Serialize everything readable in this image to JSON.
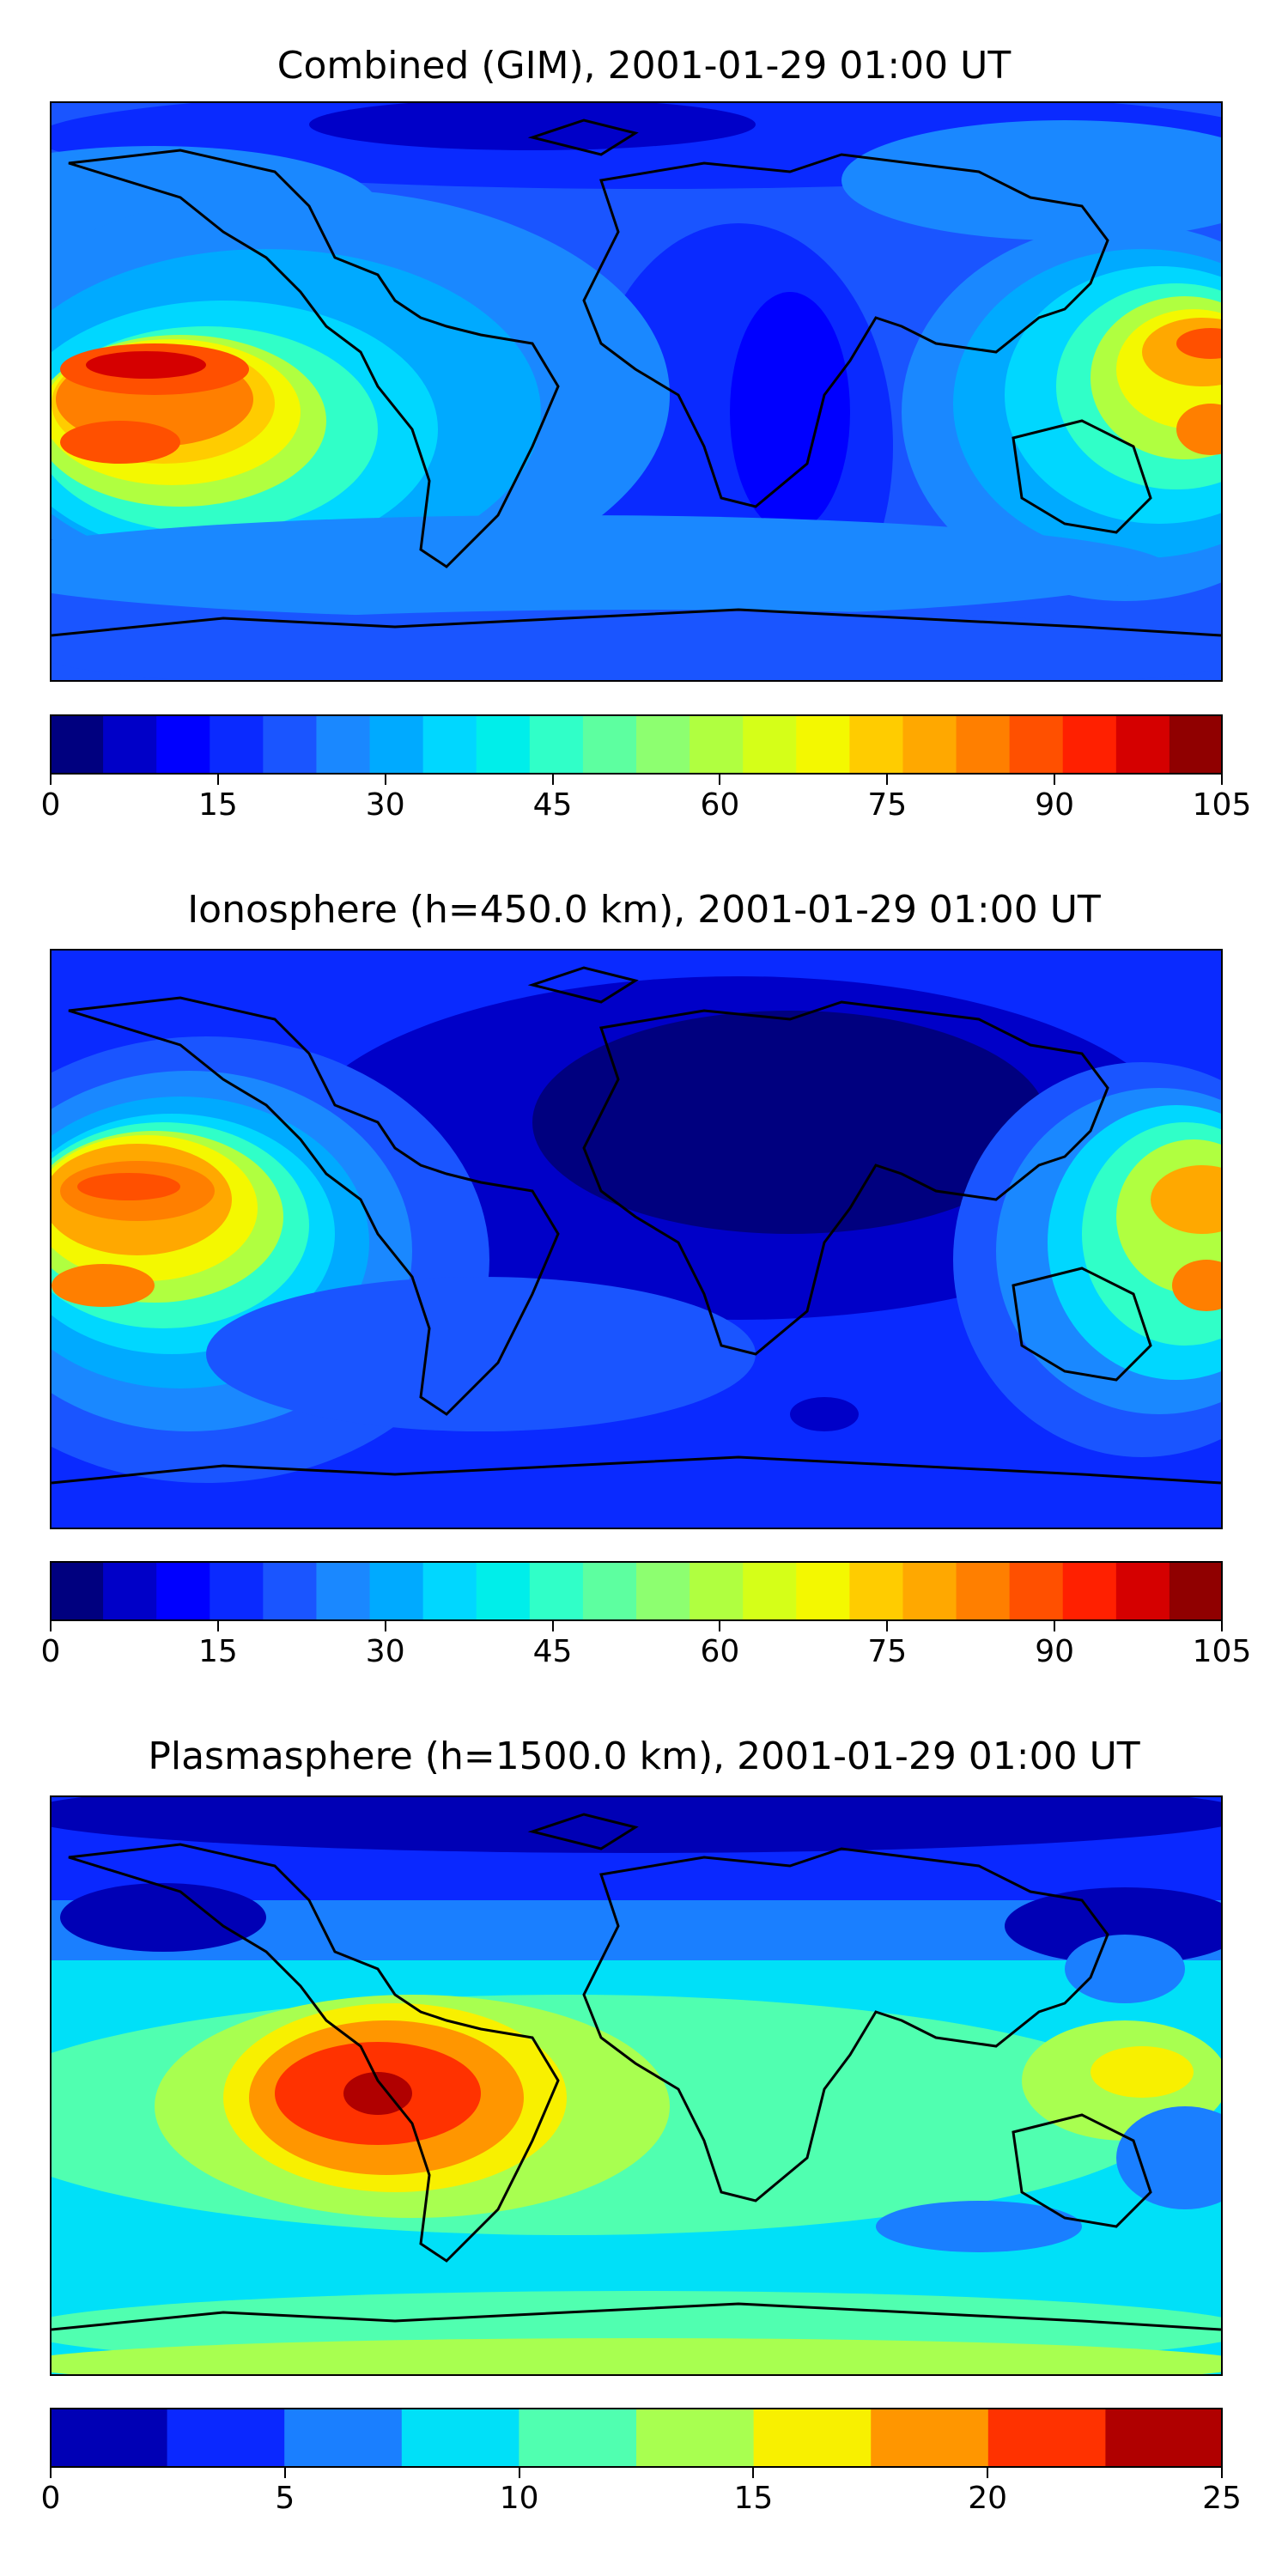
{
  "panels": [
    {
      "title": "Combined (GIM), 2001-01-29 01:00 UT",
      "colorbar": {
        "min": 0,
        "max": 105,
        "step": 5,
        "ticks": [
          "0",
          "15",
          "30",
          "45",
          "60",
          "75",
          "90",
          "105"
        ],
        "colors": [
          "#00007f",
          "#0000c8",
          "#0000ff",
          "#0a2aff",
          "#1a55ff",
          "#1a88ff",
          "#00aaff",
          "#00d7ff",
          "#00eeea",
          "#30ffc8",
          "#5dffa0",
          "#8dff70",
          "#b0ff40",
          "#d5ff18",
          "#f4f800",
          "#ffcc00",
          "#ffa800",
          "#ff7f00",
          "#ff5000",
          "#ff2000",
          "#d50000",
          "#900000"
        ]
      }
    },
    {
      "title": "Ionosphere  (h=450.0 km), 2001-01-29 01:00 UT",
      "colorbar": {
        "min": 0,
        "max": 105,
        "step": 5,
        "ticks": [
          "0",
          "15",
          "30",
          "45",
          "60",
          "75",
          "90",
          "105"
        ],
        "colors": [
          "#00007f",
          "#0000c8",
          "#0000ff",
          "#0a2aff",
          "#1a55ff",
          "#1a88ff",
          "#00aaff",
          "#00d7ff",
          "#00eeea",
          "#30ffc8",
          "#5dffa0",
          "#8dff70",
          "#b0ff40",
          "#d5ff18",
          "#f4f800",
          "#ffcc00",
          "#ffa800",
          "#ff7f00",
          "#ff5000",
          "#ff2000",
          "#d50000",
          "#900000"
        ]
      }
    },
    {
      "title": "Plasmasphere (h=1500.0 km), 2001-01-29 01:00 UT",
      "colorbar": {
        "min": 0,
        "max": 25,
        "step": 2.5,
        "ticks": [
          "0",
          "5",
          "10",
          "15",
          "20",
          "25"
        ],
        "colors": [
          "#0000b5",
          "#0a28ff",
          "#1a7fff",
          "#00e0f8",
          "#50ffb0",
          "#a8ff50",
          "#f8f000",
          "#ff9600",
          "#ff3200",
          "#b00000"
        ]
      }
    }
  ]
}
